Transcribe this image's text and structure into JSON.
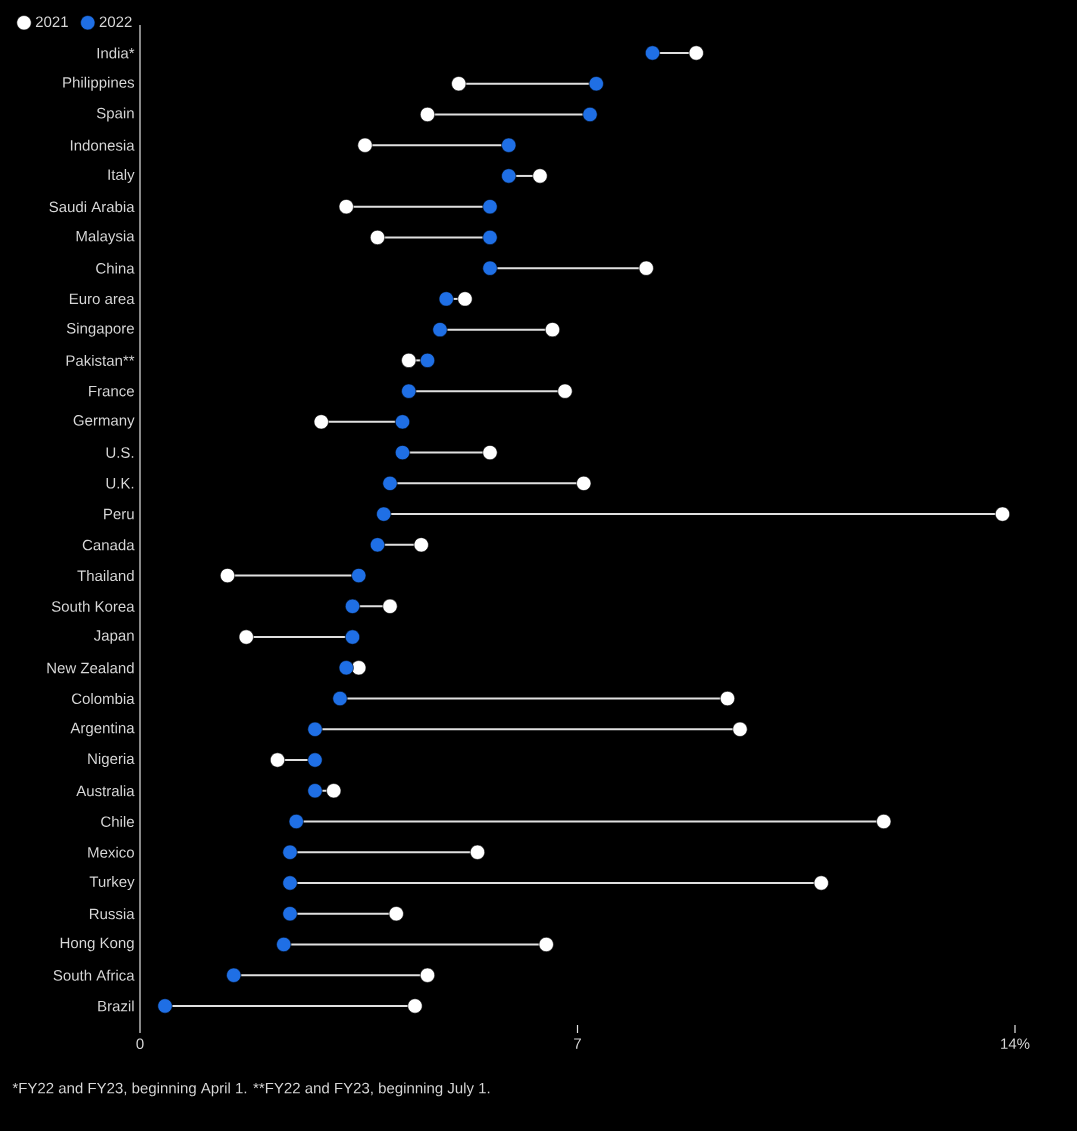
{
  "chart_data": {
    "type": "scatter",
    "orientation": "horizontal",
    "marker": "circle",
    "legend": "top left",
    "categories": [
      "India*",
      "Philippines",
      "Spain",
      "Indonesia",
      "Italy",
      "Saudi Arabia",
      "Malaysia",
      "China",
      "Euro area",
      "Singapore",
      "Pakistan**",
      "France",
      "Germany",
      "U.S.",
      "U.K.",
      "Peru",
      "Canada",
      "Thailand",
      "South Korea",
      "Japan",
      "New Zealand",
      "Colombia",
      "Argentina",
      "Nigeria",
      "Australia",
      "Chile",
      "Mexico",
      "Turkey",
      "Russia",
      "Hong Kong",
      "South Africa",
      "Brazil"
    ],
    "xlim": [
      0,
      14
    ],
    "xticks": [
      0,
      7,
      {
        "value": 14,
        "label": "14%"
      }
    ],
    "series": [
      {
        "name": "2021",
        "color": "#ffffff",
        "values": [
          8.9,
          5.1,
          4.6,
          3.6,
          6.4,
          3.3,
          3.8,
          8.1,
          5.2,
          6.6,
          4.3,
          6.8,
          2.9,
          5.6,
          7.1,
          13.8,
          4.5,
          1.4,
          4.0,
          1.7,
          3.5,
          9.4,
          9.6,
          2.2,
          3.1,
          11.9,
          5.4,
          10.9,
          4.1,
          6.5,
          4.6,
          4.4
        ]
      },
      {
        "name": "2022",
        "color": "#1f6fe5",
        "values": [
          8.2,
          7.3,
          7.2,
          5.9,
          5.9,
          5.6,
          5.6,
          5.6,
          4.9,
          4.8,
          4.6,
          4.3,
          4.2,
          4.2,
          4.0,
          3.9,
          3.8,
          3.5,
          3.4,
          3.4,
          3.3,
          3.2,
          2.8,
          2.8,
          2.8,
          2.5,
          2.4,
          2.4,
          2.4,
          2.3,
          1.5,
          0.4
        ]
      }
    ],
    "annotations": [
      "*FY22 and FY23, beginning April 1. **FY22 and FY23, beginning July 1."
    ]
  }
}
